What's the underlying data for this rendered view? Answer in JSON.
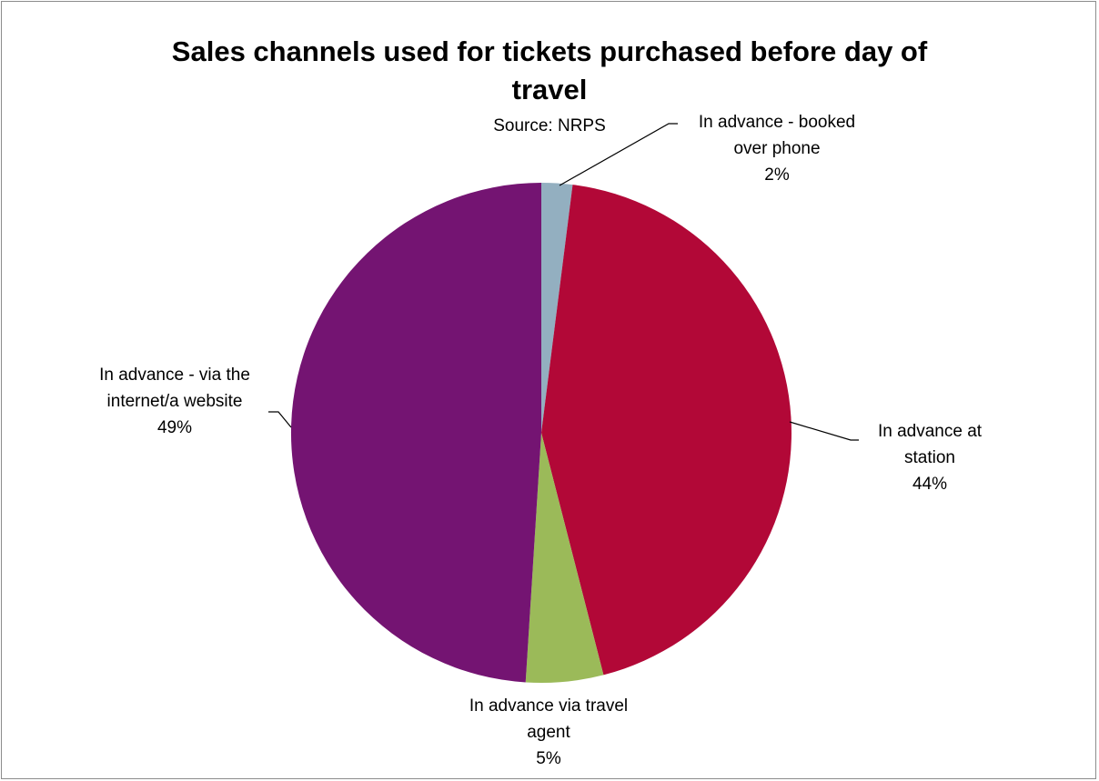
{
  "chart_data": {
    "type": "pie",
    "title": "Sales channels used for tickets purchased before day of travel",
    "subtitle": "Source: NRPS",
    "slices": [
      {
        "label_lines": [
          "In advance - booked",
          "over phone"
        ],
        "percent_label": "2%",
        "value": 2,
        "color": "#93afc0"
      },
      {
        "label_lines": [
          "In advance at",
          "station"
        ],
        "percent_label": "44%",
        "value": 44,
        "color": "#b20837"
      },
      {
        "label_lines": [
          "In advance via travel",
          "agent"
        ],
        "percent_label": "5%",
        "value": 5,
        "color": "#9bba59"
      },
      {
        "label_lines": [
          "In advance - via the",
          "internet/a website"
        ],
        "percent_label": "49%",
        "value": 49,
        "color": "#741472"
      }
    ]
  }
}
